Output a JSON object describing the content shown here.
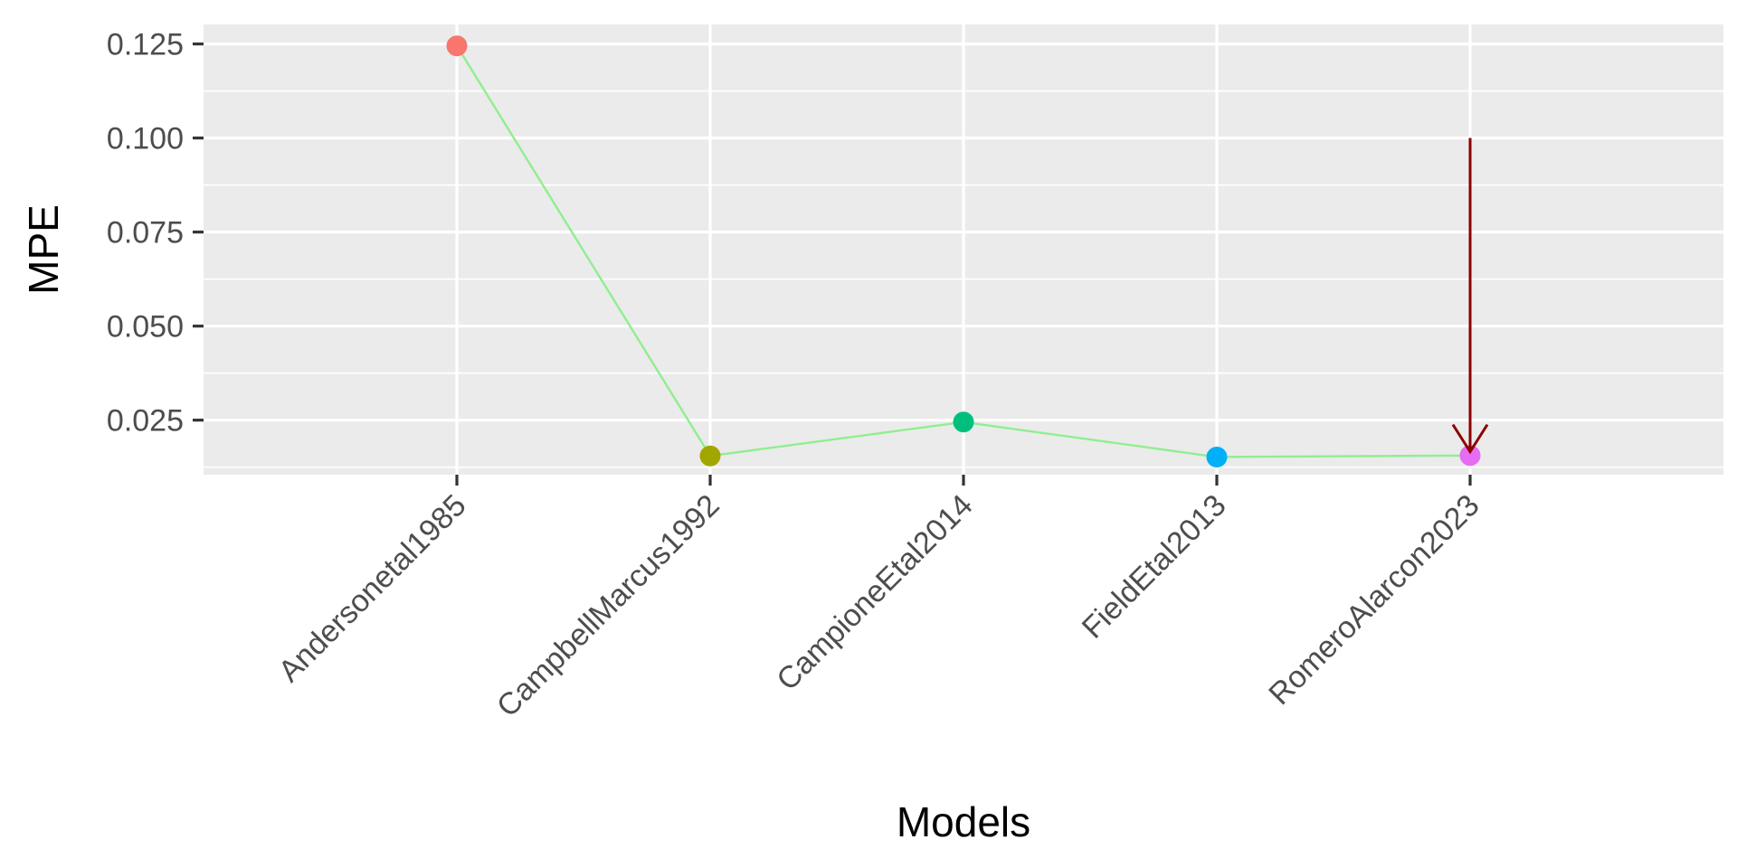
{
  "chart_data": {
    "type": "line",
    "xlabel": "Models",
    "ylabel": "MPE",
    "categories": [
      "Andersonetal1985",
      "CampbellMarcus1992",
      "CampioneEtal2014",
      "FieldEtal2013",
      "RomeroAlarcon2023"
    ],
    "values": [
      0.1245,
      0.0155,
      0.0245,
      0.0152,
      0.0156
    ],
    "point_colors": [
      "#F8766D",
      "#A3A500",
      "#00BF7D",
      "#00B0F6",
      "#E76BF3"
    ],
    "line_color": "#90EE90",
    "y_ticks": [
      "0.025",
      "0.050",
      "0.075",
      "0.100",
      "0.125"
    ],
    "ylim": [
      0.0105,
      0.1302
    ],
    "grid": true,
    "panel_color": "#EBEBEB",
    "annotation": {
      "type": "arrow",
      "color": "#8B0000",
      "category": "RomeroAlarcon2023",
      "y_start": 0.1,
      "y_end": 0.0166
    }
  }
}
